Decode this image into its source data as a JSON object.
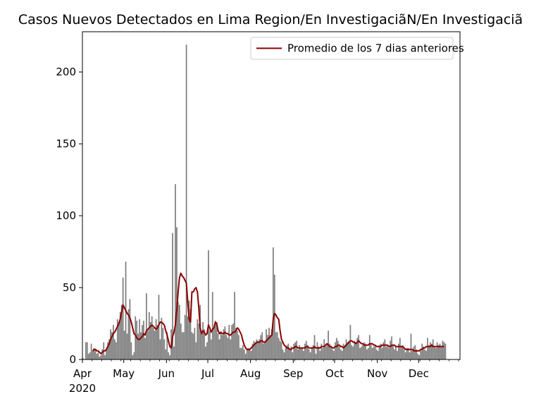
{
  "chart_data": {
    "type": "bar",
    "title": "Casos Nuevos Detectados en Lima Region/En InvestigaciãN/En Investigaciã",
    "xlabel": "",
    "ylabel": "",
    "ylim": [
      0,
      228
    ],
    "yticks": [
      0,
      50,
      100,
      150,
      200
    ],
    "x_start": "2020-04-01",
    "x_end": "2020-12-31",
    "xticks": [
      {
        "date": "2020-04-01",
        "label": "Apr",
        "sublabel": "2020"
      },
      {
        "date": "2020-05-01",
        "label": "May",
        "sublabel": ""
      },
      {
        "date": "2020-06-01",
        "label": "Jun",
        "sublabel": ""
      },
      {
        "date": "2020-07-01",
        "label": "Jul",
        "sublabel": ""
      },
      {
        "date": "2020-08-01",
        "label": "Aug",
        "sublabel": ""
      },
      {
        "date": "2020-09-01",
        "label": "Sep",
        "sublabel": ""
      },
      {
        "date": "2020-10-01",
        "label": "Oct",
        "sublabel": ""
      },
      {
        "date": "2020-11-01",
        "label": "Nov",
        "sublabel": ""
      },
      {
        "date": "2020-12-01",
        "label": "Dec",
        "sublabel": ""
      }
    ],
    "grid": false,
    "legend": {
      "position": "top-right",
      "entries": [
        "Promedio de los 7 dias anteriores"
      ]
    },
    "colors": {
      "bars": "#808080",
      "line": "#8b0000"
    },
    "series": [
      {
        "name": "",
        "type": "bar",
        "values": [
          1,
          0,
          12,
          12,
          4,
          5,
          11,
          6,
          8,
          7,
          4,
          5,
          2,
          3,
          7,
          12,
          3,
          8,
          12,
          14,
          21,
          19,
          24,
          14,
          12,
          28,
          26,
          33,
          38,
          57,
          20,
          68,
          18,
          35,
          42,
          12,
          3,
          5,
          30,
          27,
          18,
          28,
          19,
          24,
          27,
          15,
          46,
          20,
          33,
          26,
          30,
          22,
          20,
          28,
          24,
          45,
          14,
          29,
          22,
          14,
          7,
          19,
          5,
          3,
          21,
          88,
          9,
          122,
          92,
          40,
          38,
          25,
          19,
          19,
          31,
          219,
          30,
          41,
          35,
          19,
          18,
          22,
          12,
          28,
          25,
          38,
          18,
          26,
          21,
          9,
          12,
          76,
          20,
          14,
          47,
          22,
          27,
          26,
          18,
          14,
          19,
          17,
          21,
          23,
          17,
          15,
          24,
          14,
          24,
          25,
          47,
          22,
          20,
          17,
          8,
          8,
          10,
          7,
          4,
          7,
          8,
          7,
          6,
          11,
          13,
          12,
          14,
          13,
          14,
          17,
          19,
          11,
          13,
          21,
          17,
          22,
          17,
          21,
          78,
          59,
          19,
          19,
          15,
          13,
          12,
          7,
          5,
          8,
          10,
          11,
          7,
          9,
          5,
          11,
          12,
          13,
          7,
          10,
          8,
          8,
          6,
          11,
          13,
          10,
          7,
          5,
          8,
          10,
          17,
          4,
          12,
          9,
          6,
          11,
          8,
          14,
          9,
          10,
          20,
          11,
          9,
          7,
          6,
          12,
          15,
          13,
          9,
          7,
          6,
          11,
          10,
          14,
          12,
          13,
          24,
          10,
          9,
          13,
          11,
          15,
          17,
          8,
          9,
          10,
          12,
          11,
          7,
          8,
          17,
          11,
          8,
          9,
          10,
          7,
          6,
          10,
          11,
          8,
          12,
          14,
          9,
          10,
          8,
          13,
          16,
          10,
          7,
          9,
          6,
          11,
          15,
          9,
          10,
          7,
          5,
          8,
          8,
          5,
          18,
          6,
          9,
          10,
          7,
          4,
          3,
          6,
          11,
          9,
          7,
          6,
          15,
          10,
          12,
          11,
          14,
          9,
          8,
          12,
          10,
          11,
          9,
          13,
          12,
          11
        ]
      },
      {
        "name": "Promedio de los 7 dias anteriores",
        "type": "line",
        "values": [
          null,
          null,
          null,
          null,
          null,
          null,
          null,
          6,
          7,
          7,
          6,
          6,
          5,
          4,
          5,
          6,
          6,
          7,
          9,
          11,
          14,
          16,
          18,
          19,
          21,
          23,
          25,
          28,
          33,
          38,
          36,
          34,
          32,
          31,
          29,
          26,
          22,
          18,
          17,
          15,
          14,
          14,
          15,
          16,
          18,
          17,
          20,
          21,
          22,
          23,
          24,
          23,
          22,
          21,
          22,
          24,
          26,
          26,
          25,
          24,
          20,
          17,
          13,
          9,
          8,
          16,
          19,
          24,
          34,
          47,
          57,
          60,
          58,
          57,
          55,
          53,
          40,
          28,
          26,
          47,
          47,
          49,
          50,
          47,
          36,
          22,
          18,
          20,
          19,
          17,
          18,
          24,
          22,
          19,
          21,
          22,
          26,
          25,
          20,
          18,
          19,
          18,
          18,
          19,
          18,
          18,
          17,
          17,
          18,
          19,
          19,
          20,
          22,
          21,
          19,
          17,
          13,
          10,
          8,
          7,
          7,
          7,
          8,
          9,
          10,
          11,
          12,
          12,
          12,
          13,
          13,
          12,
          12,
          13,
          14,
          15,
          16,
          17,
          28,
          32,
          31,
          29,
          28,
          20,
          14,
          12,
          10,
          9,
          8,
          8,
          7,
          7,
          8,
          8,
          9,
          9,
          8,
          8,
          8,
          8,
          8,
          8,
          9,
          9,
          8,
          8,
          8,
          8,
          9,
          8,
          8,
          8,
          8,
          9,
          9,
          9,
          10,
          11,
          10,
          9,
          9,
          8,
          8,
          9,
          9,
          10,
          10,
          9,
          9,
          8,
          9,
          10,
          11,
          12,
          13,
          13,
          12,
          12,
          11,
          12,
          13,
          12,
          11,
          11,
          10,
          10,
          10,
          10,
          11,
          11,
          11,
          10,
          10,
          9,
          9,
          9,
          9,
          10,
          10,
          10,
          10,
          10,
          9,
          9,
          10,
          10,
          10,
          9,
          9,
          9,
          9,
          9,
          9,
          8,
          7,
          7,
          7,
          7,
          7,
          7,
          6,
          6,
          6,
          6,
          6,
          7,
          7,
          8,
          8,
          9,
          9,
          9,
          9,
          10,
          9,
          9,
          9,
          9,
          9,
          9,
          9,
          9,
          9
        ]
      }
    ]
  }
}
